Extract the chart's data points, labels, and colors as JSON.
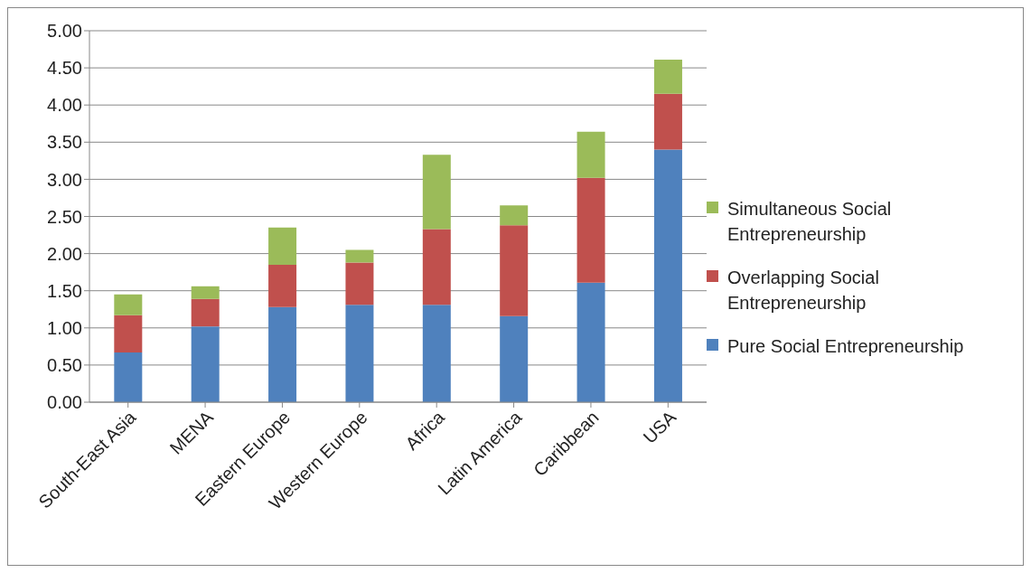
{
  "chart_data": {
    "type": "bar",
    "stacked": true,
    "categories": [
      "South-East Asia",
      "MENA",
      "Eastern Europe",
      "Western Europe",
      "Africa",
      "Latin America",
      "Caribbean",
      "USA"
    ],
    "series": [
      {
        "name": "Pure Social Entrepreneurship",
        "color": "#4f81bd",
        "values": [
          0.67,
          1.02,
          1.28,
          1.31,
          1.31,
          1.16,
          1.61,
          3.4
        ]
      },
      {
        "name": "Overlapping Social Entrepreneurship",
        "color": "#c0504d",
        "values": [
          0.5,
          0.37,
          0.57,
          0.57,
          1.02,
          1.22,
          1.41,
          0.75
        ]
      },
      {
        "name": "Simultaneous Social Entrepreneurship",
        "color": "#9bbb59",
        "values": [
          0.28,
          0.17,
          0.5,
          0.17,
          1.0,
          0.27,
          0.62,
          0.46
        ]
      }
    ],
    "ylim": [
      0,
      5
    ],
    "yticks": [
      {
        "value": 0,
        "label": "0.00"
      },
      {
        "value": 0.5,
        "label": "0.50"
      },
      {
        "value": 1,
        "label": "1.00"
      },
      {
        "value": 1.5,
        "label": "1.50"
      },
      {
        "value": 2,
        "label": "2.00"
      },
      {
        "value": 2.5,
        "label": "2.50"
      },
      {
        "value": 3,
        "label": "3.00"
      },
      {
        "value": 3.5,
        "label": "3.50"
      },
      {
        "value": 4,
        "label": "4.00"
      },
      {
        "value": 4.5,
        "label": "4.50"
      },
      {
        "value": 5,
        "label": "5.00"
      }
    ],
    "grid": "y",
    "legend": "right"
  }
}
